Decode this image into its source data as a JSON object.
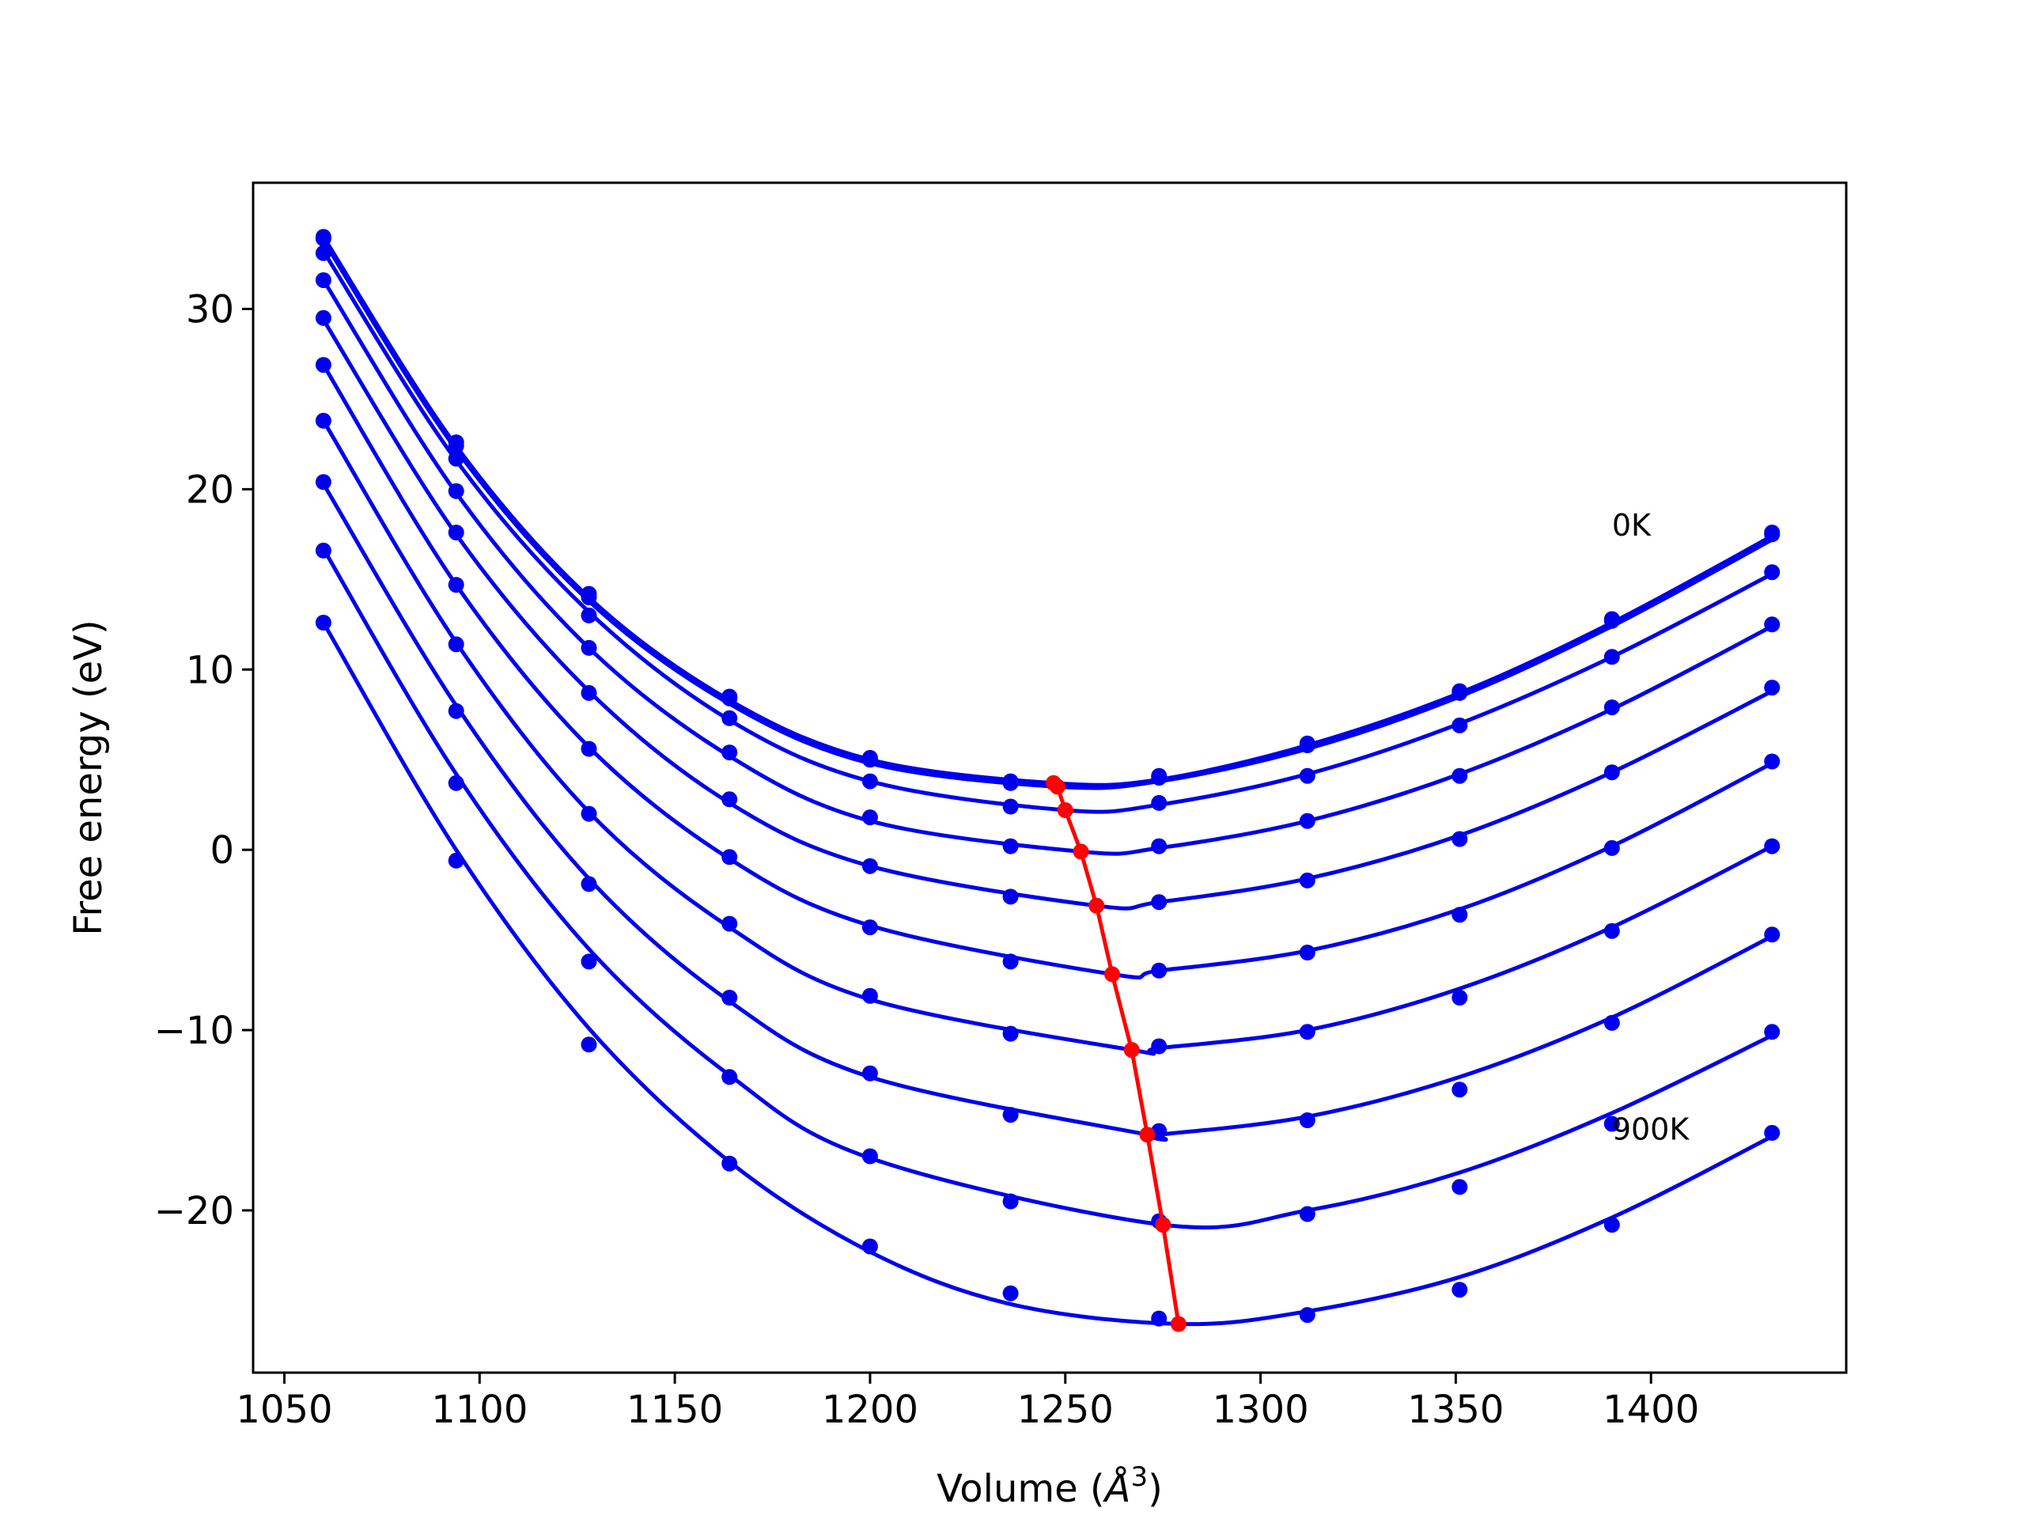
{
  "chart_data": {
    "type": "line",
    "title": "",
    "xlabel": "Volume",
    "xlabel_unit_base": "Å",
    "xlabel_unit_exp": "3",
    "ylabel": "Free energy (eV)",
    "xlim": [
      1042,
      1450
    ],
    "ylim": [
      -29,
      37
    ],
    "x_ticks": [
      1050,
      1100,
      1150,
      1200,
      1250,
      1300,
      1350,
      1400
    ],
    "y_ticks": [
      -20,
      -10,
      0,
      10,
      20,
      30
    ],
    "x_tick_labels": [
      "1050",
      "1100",
      "1150",
      "1200",
      "1250",
      "1300",
      "1350",
      "1400"
    ],
    "y_tick_labels": [
      "−20",
      "−10",
      "0",
      "10",
      "20",
      "30"
    ],
    "grid": false,
    "legend": "none",
    "annotations": [
      {
        "text": "0K",
        "x": 1390,
        "y": 18
      },
      {
        "text": "900K",
        "x": 1390,
        "y": -15.5
      }
    ],
    "colors": {
      "fit": "#0000ee",
      "points": "#0000ee",
      "minimum_path": "#ff0000"
    },
    "volumes": [
      1060,
      1094,
      1128,
      1164,
      1200,
      1236,
      1274,
      1312,
      1351,
      1390,
      1431
    ],
    "series": [
      {
        "points": [
          34.0,
          22.6,
          14.2,
          8.5,
          5.1,
          3.8,
          4.1,
          5.9,
          8.8,
          12.8,
          17.6
        ],
        "curve": {
          "v": [
            1060,
            1094,
            1128,
            1164,
            1200,
            1247,
            1274,
            1312,
            1351,
            1390,
            1431
          ],
          "e": [
            34.0,
            22.4,
            14.0,
            8.3,
            5.0,
            3.7,
            3.9,
            5.8,
            8.7,
            12.6,
            17.4
          ]
        }
      },
      {
        "points": [
          33.9,
          22.4,
          14.0,
          8.4,
          5.0,
          3.7,
          4.0,
          5.8,
          8.7,
          12.7,
          17.5
        ],
        "curve": {
          "v": [
            1060,
            1094,
            1128,
            1164,
            1200,
            1248,
            1274,
            1312,
            1351,
            1390,
            1431
          ],
          "e": [
            33.8,
            22.2,
            13.8,
            8.1,
            4.8,
            3.5,
            3.8,
            5.6,
            8.5,
            12.4,
            17.2
          ]
        }
      },
      {
        "points": [
          33.1,
          21.7,
          13.0,
          7.3,
          3.8,
          2.4,
          2.6,
          4.1,
          6.9,
          10.7,
          15.4
        ],
        "curve": {
          "v": [
            1060,
            1094,
            1128,
            1164,
            1200,
            1250,
            1274,
            1312,
            1351,
            1390,
            1431
          ],
          "e": [
            33.2,
            21.6,
            13.2,
            7.2,
            3.8,
            2.2,
            2.5,
            4.2,
            7.0,
            10.7,
            15.3
          ]
        }
      },
      {
        "points": [
          31.6,
          19.9,
          11.2,
          5.4,
          1.8,
          0.2,
          0.2,
          1.6,
          4.1,
          7.9,
          12.5
        ],
        "curve": {
          "v": [
            1060,
            1094,
            1128,
            1164,
            1200,
            1254,
            1274,
            1312,
            1351,
            1390,
            1431
          ],
          "e": [
            31.6,
            19.8,
            11.2,
            5.2,
            1.6,
            -0.1,
            0.1,
            1.6,
            4.2,
            7.8,
            12.4
          ]
        }
      },
      {
        "points": [
          29.5,
          17.6,
          8.7,
          2.8,
          -0.9,
          -2.6,
          -2.9,
          -1.7,
          0.6,
          4.3,
          9.0
        ],
        "curve": {
          "v": [
            1060,
            1094,
            1128,
            1164,
            1200,
            1258,
            1274,
            1312,
            1351,
            1390,
            1431
          ],
          "e": [
            29.4,
            17.5,
            8.8,
            2.6,
            -0.9,
            -3.1,
            -2.9,
            -1.6,
            0.8,
            4.3,
            8.8
          ]
        }
      },
      {
        "points": [
          26.9,
          14.7,
          5.6,
          -0.4,
          -4.3,
          -6.2,
          -6.7,
          -5.7,
          -3.6,
          0.1,
          4.9
        ],
        "curve": {
          "v": [
            1060,
            1094,
            1128,
            1164,
            1200,
            1262,
            1274,
            1312,
            1351,
            1390,
            1431
          ],
          "e": [
            26.9,
            14.7,
            5.7,
            -0.5,
            -4.2,
            -6.9,
            -6.7,
            -5.6,
            -3.3,
            0.2,
            4.8
          ]
        }
      },
      {
        "points": [
          23.8,
          11.4,
          2.0,
          -4.1,
          -8.1,
          -10.2,
          -10.9,
          -10.1,
          -8.2,
          -4.5,
          0.2
        ],
        "curve": {
          "v": [
            1060,
            1094,
            1128,
            1164,
            1200,
            1267,
            1274,
            1312,
            1351,
            1390,
            1431
          ],
          "e": [
            23.8,
            11.5,
            2.1,
            -4.3,
            -8.3,
            -11.1,
            -11.0,
            -10.0,
            -7.7,
            -4.3,
            0.2
          ]
        }
      },
      {
        "points": [
          20.4,
          7.7,
          -1.9,
          -8.2,
          -12.4,
          -14.7,
          -15.6,
          -15.0,
          -13.3,
          -9.6,
          -4.7
        ],
        "curve": {
          "v": [
            1060,
            1094,
            1128,
            1164,
            1200,
            1271,
            1274,
            1312,
            1351,
            1390,
            1431
          ],
          "e": [
            20.3,
            8.0,
            -1.6,
            -8.4,
            -12.6,
            -15.8,
            -15.8,
            -14.8,
            -12.6,
            -9.3,
            -4.8
          ]
        }
      },
      {
        "points": [
          16.6,
          3.7,
          -6.2,
          -12.6,
          -17.0,
          -19.5,
          -20.6,
          -20.2,
          -18.7,
          -15.2,
          -10.1
        ],
        "curve": {
          "v": [
            1060,
            1094,
            1128,
            1164,
            1200,
            1275,
            1312,
            1351,
            1390,
            1431
          ],
          "e": [
            16.7,
            4.2,
            -5.5,
            -12.5,
            -17.1,
            -20.8,
            -20.0,
            -17.9,
            -14.6,
            -10.3
          ]
        }
      },
      {
        "points": [
          12.6,
          -0.6,
          -10.8,
          -17.4,
          -22.0,
          -24.6,
          -26.0,
          -25.8,
          -24.4,
          -20.8,
          -15.7
        ],
        "curve": {
          "v": [
            1060,
            1094,
            1128,
            1164,
            1200,
            1236,
            1279,
            1312,
            1351,
            1390,
            1431
          ],
          "e": [
            12.6,
            0.0,
            -9.9,
            -17.3,
            -22.3,
            -25.2,
            -26.3,
            -25.6,
            -23.7,
            -20.4,
            -15.9
          ]
        }
      }
    ],
    "minimum_path": {
      "v": [
        1247,
        1248,
        1250,
        1254,
        1258,
        1262,
        1267,
        1271,
        1275,
        1279
      ],
      "e": [
        3.7,
        3.5,
        2.2,
        -0.1,
        -3.1,
        -6.9,
        -11.1,
        -15.8,
        -20.8,
        -26.3
      ]
    }
  }
}
